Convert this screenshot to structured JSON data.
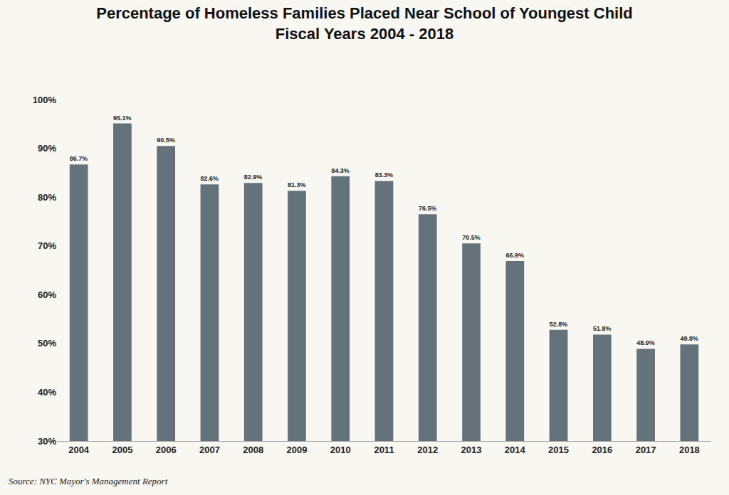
{
  "chart_data": {
    "type": "bar",
    "title": "Percentage of Homeless Families Placed Near School of Youngest Child",
    "subtitle": "Fiscal Years 2004 - 2018",
    "source": "Source: NYC Mayor's Management Report",
    "categories": [
      "2004",
      "2005",
      "2006",
      "2007",
      "2008",
      "2009",
      "2010",
      "2011",
      "2012",
      "2013",
      "2014",
      "2015",
      "2016",
      "2017",
      "2018"
    ],
    "values": [
      86.7,
      95.1,
      90.5,
      82.6,
      82.9,
      81.3,
      84.3,
      83.3,
      76.5,
      70.5,
      66.9,
      52.8,
      51.8,
      48.9,
      49.8
    ],
    "value_labels": [
      "86.7%",
      "95.1%",
      "90.5%",
      "82.6%",
      "82.9%",
      "81.3%",
      "84.3%",
      "83.3%",
      "76.5%",
      "70.5%",
      "66.9%",
      "52.8%",
      "51.8%",
      "48.9%",
      "49.8%"
    ],
    "color": "#64737b",
    "ylim": [
      30,
      100
    ],
    "yticks": [
      {
        "value": 30,
        "label": "30%"
      },
      {
        "value": 40,
        "label": "40%"
      },
      {
        "value": 50,
        "label": "50%"
      },
      {
        "value": 60,
        "label": "60%"
      },
      {
        "value": 70,
        "label": "70%"
      },
      {
        "value": 80,
        "label": "80%"
      },
      {
        "value": 90,
        "label": "90%"
      },
      {
        "value": 100,
        "label": "100%"
      }
    ],
    "grid": false,
    "data_labels": true
  }
}
